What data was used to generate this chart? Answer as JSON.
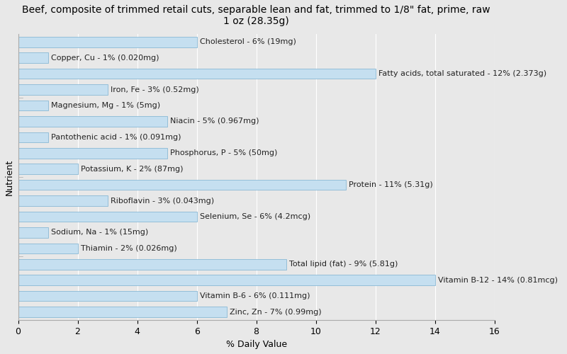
{
  "title": "Beef, composite of trimmed retail cuts, separable lean and fat, trimmed to 1/8\" fat, prime, raw\n1 oz (28.35g)",
  "xlabel": "% Daily Value",
  "ylabel": "Nutrient",
  "xlim": [
    0,
    16
  ],
  "xticks": [
    0,
    2,
    4,
    6,
    8,
    10,
    12,
    14,
    16
  ],
  "background_color": "#dce8f0",
  "plot_bg_color": "#dce8f0",
  "bar_color": "#c5dff0",
  "bar_edge_color": "#7ab0d0",
  "nutrients": [
    "Cholesterol - 6% (19mg)",
    "Copper, Cu - 1% (0.020mg)",
    "Fatty acids, total saturated - 12% (2.373g)",
    "Iron, Fe - 3% (0.52mg)",
    "Magnesium, Mg - 1% (5mg)",
    "Niacin - 5% (0.967mg)",
    "Pantothenic acid - 1% (0.091mg)",
    "Phosphorus, P - 5% (50mg)",
    "Potassium, K - 2% (87mg)",
    "Protein - 11% (5.31g)",
    "Riboflavin - 3% (0.043mg)",
    "Selenium, Se - 6% (4.2mcg)",
    "Sodium, Na - 1% (15mg)",
    "Thiamin - 2% (0.026mg)",
    "Total lipid (fat) - 9% (5.81g)",
    "Vitamin B-12 - 14% (0.81mcg)",
    "Vitamin B-6 - 6% (0.111mg)",
    "Zinc, Zn - 7% (0.99mg)"
  ],
  "values": [
    6,
    1,
    12,
    3,
    1,
    5,
    1,
    5,
    2,
    11,
    3,
    6,
    1,
    2,
    9,
    14,
    6,
    7
  ],
  "title_fontsize": 10,
  "label_fontsize": 8,
  "axis_fontsize": 9
}
